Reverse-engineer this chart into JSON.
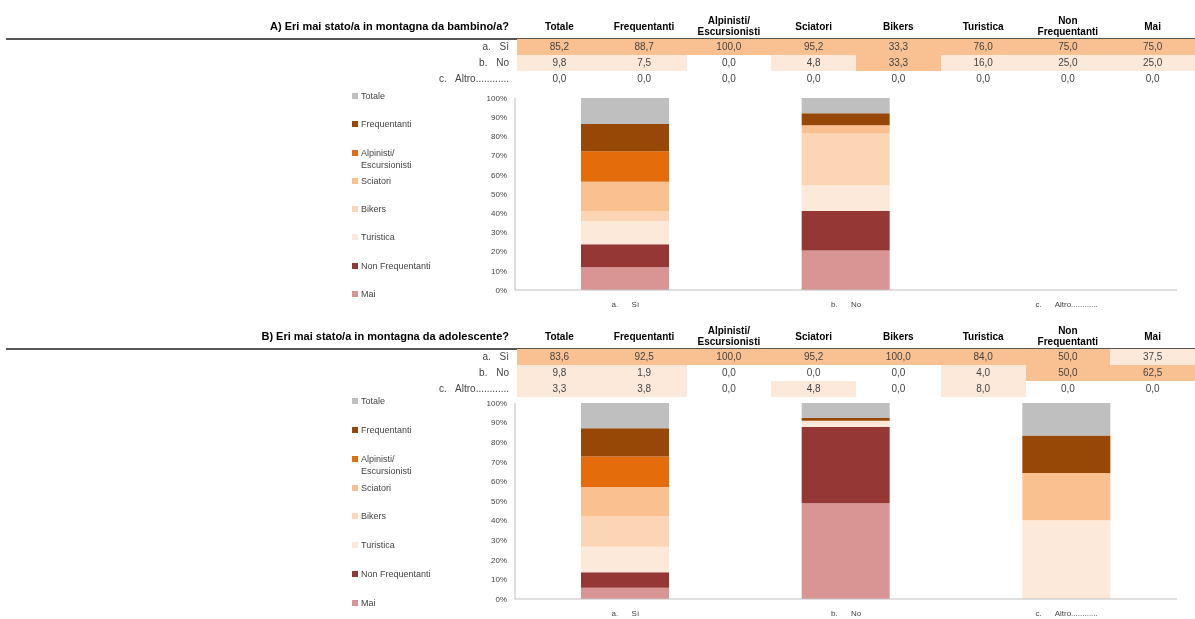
{
  "chart_data": [
    {
      "type": "heatmap",
      "title": "A) Eri mai stato/a in montagna da bambino/a?",
      "categories": [
        "Totale",
        "Frequentanti",
        "Alpinisti/ Escursionisti",
        "Sciatori",
        "Bikers",
        "Turistica",
        "Non Frequentanti",
        "Mai"
      ],
      "y_categories": [
        "a.  Sì",
        "b.  No",
        "c.  Altro............"
      ],
      "cells": [
        [
          85.2,
          88.7,
          100,
          95.2,
          33.3,
          76,
          75,
          75
        ],
        [
          9.8,
          7.5,
          0,
          4.8,
          33.3,
          16,
          25,
          25
        ],
        [
          0,
          0,
          0,
          0,
          0,
          0,
          0,
          0
        ]
      ],
      "cell_labels": [
        [
          "85,2",
          "88,7",
          "100,0",
          "95,2",
          "33,3",
          "76,0",
          "75,0",
          "75,0"
        ],
        [
          "9,8",
          "7,5",
          "0,0",
          "4,8",
          "33,3",
          "16,0",
          "25,0",
          "25,0"
        ],
        [
          "0,0",
          "0,0",
          "0,0",
          "0,0",
          "0,0",
          "0,0",
          "0,0",
          "0,0"
        ]
      ]
    },
    {
      "type": "bar",
      "stacked": true,
      "legend": "left",
      "categories": [
        "a.      Sì",
        "b.      No",
        "c.      Altro............"
      ],
      "ylim": [
        0,
        100
      ],
      "yticks": [
        {
          "value": 0,
          "label": "0%"
        },
        {
          "value": 10,
          "label": "10%"
        },
        {
          "value": 20,
          "label": "20%"
        },
        {
          "value": 30,
          "label": "30%"
        },
        {
          "value": 40,
          "label": "40%"
        },
        {
          "value": 50,
          "label": "50%"
        },
        {
          "value": 60,
          "label": "60%"
        },
        {
          "value": 70,
          "label": "70%"
        },
        {
          "value": 80,
          "label": "80%"
        },
        {
          "value": 90,
          "label": "90%"
        },
        {
          "value": 100,
          "label": "100%"
        }
      ],
      "series": [
        {
          "name": "Mai",
          "color": "#d99594",
          "values": [
            11.9,
            20.6,
            0
          ]
        },
        {
          "name": "Non Frequentanti",
          "color": "#953735",
          "values": [
            11.9,
            20.6,
            0
          ]
        },
        {
          "name": "Turistica",
          "color": "#fde9d9",
          "values": [
            12.1,
            13.2,
            0
          ]
        },
        {
          "name": "Bikers",
          "color": "#fcd5b5",
          "values": [
            5.3,
            27.4,
            0
          ]
        },
        {
          "name": "Sciatori",
          "color": "#fac090",
          "values": [
            15.2,
            4.0,
            0
          ]
        },
        {
          "name": "Alpinisti/ Escursionisti",
          "color": "#e46c0a",
          "values": [
            15.9,
            0,
            0
          ]
        },
        {
          "name": "Frequentanti",
          "color": "#974706",
          "values": [
            14.1,
            6.2,
            0
          ]
        },
        {
          "name": "Totale",
          "color": "#bfbfbf",
          "values": [
            13.6,
            8.1,
            0
          ]
        }
      ]
    },
    {
      "type": "heatmap",
      "title": "B) Eri mai stato/a in montagna da adolescente?",
      "categories": [
        "Totale",
        "Frequentanti",
        "Alpinisti/ Escursionisti",
        "Sciatori",
        "Bikers",
        "Turistica",
        "Non Frequentanti",
        "Mai"
      ],
      "y_categories": [
        "a.  Sì",
        "b.  No",
        "c.  Altro............"
      ],
      "cells": [
        [
          83.6,
          92.5,
          100,
          95.2,
          100,
          84,
          50,
          37.5
        ],
        [
          9.8,
          1.9,
          0,
          0,
          0,
          4,
          50,
          62.5
        ],
        [
          3.3,
          3.8,
          0,
          4.8,
          0,
          8,
          0,
          0
        ]
      ],
      "cell_labels": [
        [
          "83,6",
          "92,5",
          "100,0",
          "95,2",
          "100,0",
          "84,0",
          "50,0",
          "37,5"
        ],
        [
          "9,8",
          "1,9",
          "0,0",
          "0,0",
          "0,0",
          "4,0",
          "50,0",
          "62,5"
        ],
        [
          "3,3",
          "3,8",
          "0,0",
          "4,8",
          "0,0",
          "8,0",
          "0,0",
          "0,0"
        ]
      ]
    },
    {
      "type": "bar",
      "stacked": true,
      "legend": "left",
      "categories": [
        "a.      Sì",
        "b.      No",
        "c.      Altro............"
      ],
      "ylim": [
        0,
        100
      ],
      "yticks": [
        {
          "value": 0,
          "label": "0%"
        },
        {
          "value": 10,
          "label": "10%"
        },
        {
          "value": 20,
          "label": "20%"
        },
        {
          "value": 30,
          "label": "30%"
        },
        {
          "value": 40,
          "label": "40%"
        },
        {
          "value": 50,
          "label": "50%"
        },
        {
          "value": 60,
          "label": "60%"
        },
        {
          "value": 70,
          "label": "70%"
        },
        {
          "value": 80,
          "label": "80%"
        },
        {
          "value": 90,
          "label": "90%"
        },
        {
          "value": 100,
          "label": "100%"
        }
      ],
      "series": [
        {
          "name": "Mai",
          "color": "#d99594",
          "values": [
            5.8,
            48.8,
            0
          ]
        },
        {
          "name": "Non Frequentanti",
          "color": "#953735",
          "values": [
            7.8,
            39.0,
            0
          ]
        },
        {
          "name": "Turistica",
          "color": "#fde9d9",
          "values": [
            13.1,
            3.1,
            40.2
          ]
        },
        {
          "name": "Bikers",
          "color": "#fcd5b5",
          "values": [
            15.6,
            0,
            0
          ]
        },
        {
          "name": "Sciatori",
          "color": "#fac090",
          "values": [
            14.8,
            0,
            24.1
          ]
        },
        {
          "name": "Alpinisti/ Escursionisti",
          "color": "#e46c0a",
          "values": [
            15.6,
            0,
            0
          ]
        },
        {
          "name": "Frequentanti",
          "color": "#974706",
          "values": [
            14.4,
            1.5,
            19.1
          ]
        },
        {
          "name": "Totale",
          "color": "#bfbfbf",
          "values": [
            13.0,
            7.6,
            16.6
          ]
        }
      ]
    }
  ]
}
